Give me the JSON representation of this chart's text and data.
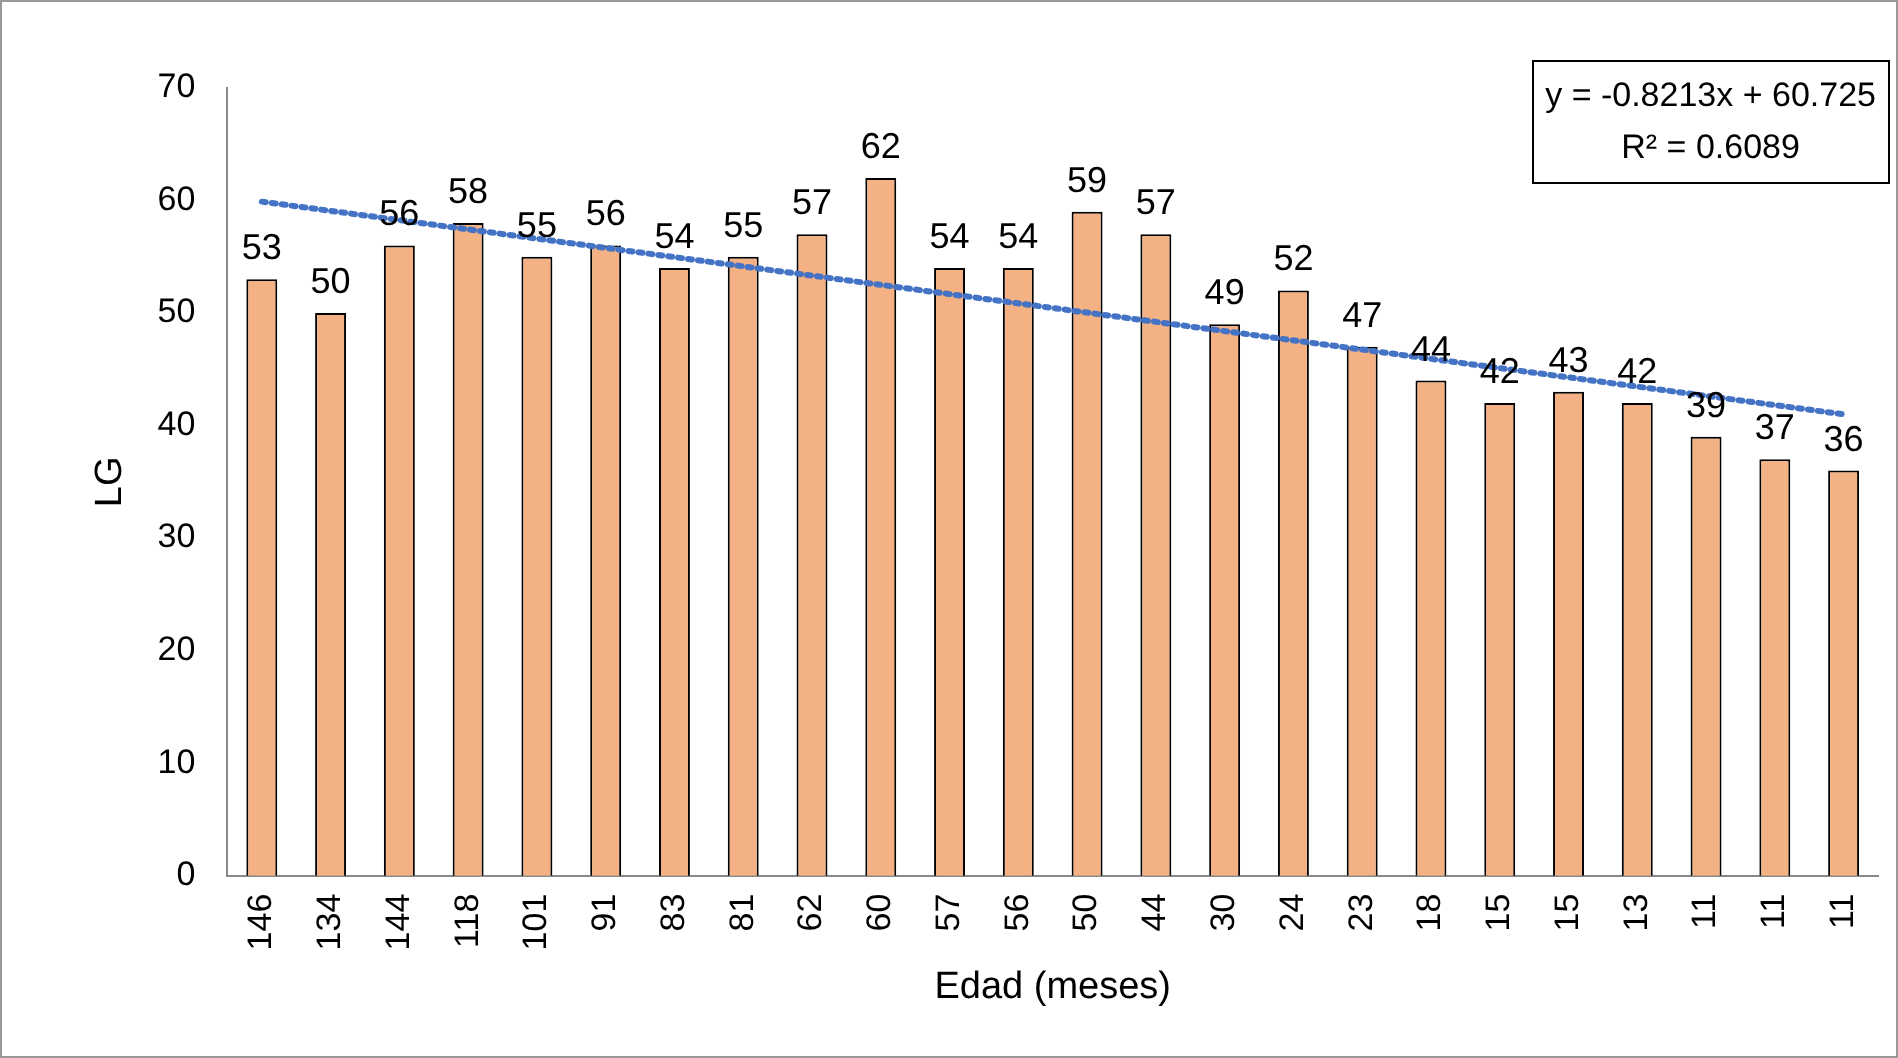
{
  "chart_data": {
    "type": "bar",
    "xlabel": "Edad (meses)",
    "ylabel": "LG",
    "categories": [
      "146",
      "134",
      "144",
      "118",
      "101",
      "91",
      "83",
      "81",
      "62",
      "60",
      "57",
      "56",
      "50",
      "44",
      "30",
      "24",
      "23",
      "18",
      "15",
      "15",
      "13",
      "11",
      "11",
      "11"
    ],
    "series": [
      {
        "color": "#f4b183",
        "values": [
          53,
          50,
          56,
          58,
          55,
          56,
          54,
          55,
          57,
          62,
          54,
          54,
          59,
          57,
          49,
          52,
          47,
          44,
          42,
          43,
          42,
          39,
          37,
          36
        ],
        "value_labels": [
          "53",
          "50",
          "56",
          "58",
          "55",
          "56",
          "54",
          "55",
          "57",
          "62",
          "54",
          "54",
          "59",
          "57",
          "49",
          "52",
          "47",
          "44",
          "42",
          "43",
          "42",
          "39",
          "37",
          "36"
        ]
      },
      {
        "type": "line",
        "color": "#4472c4",
        "line_style": "dotted",
        "marker": "none",
        "values": [
          59.9,
          null,
          null,
          null,
          null,
          null,
          null,
          null,
          null,
          null,
          null,
          null,
          null,
          null,
          null,
          null,
          null,
          null,
          null,
          null,
          null,
          null,
          null,
          41.0
        ]
      }
    ],
    "ylim": [
      0,
      70
    ],
    "yticks": [
      0,
      10,
      20,
      30,
      40,
      50,
      60,
      70
    ],
    "grid": false,
    "legend": false,
    "annotations": [
      "y = -0.8213x + 60.725",
      "R² = 0.6089"
    ]
  }
}
